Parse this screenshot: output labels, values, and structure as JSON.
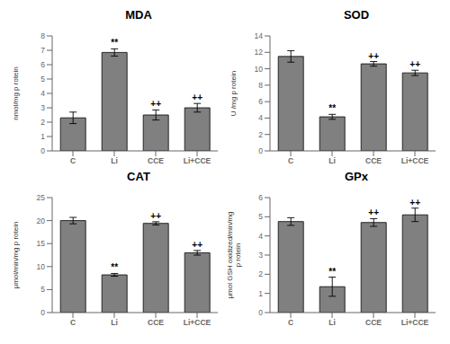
{
  "chart_data": [
    {
      "type": "bar",
      "title": "MDA",
      "ylabel": "nmol/mg p rotein",
      "categories": [
        "C",
        "Li",
        "CCE",
        "Li+CCE"
      ],
      "values": [
        2.3,
        6.85,
        2.5,
        3.0
      ],
      "errors": [
        0.4,
        0.25,
        0.35,
        0.3
      ],
      "ylim": [
        0,
        8
      ],
      "yticks": [
        0,
        1,
        2,
        3,
        4,
        5,
        6,
        7,
        8
      ],
      "annotations": [
        null,
        "**",
        "++",
        "++"
      ],
      "color": "#808080",
      "grid": false
    },
    {
      "type": "bar",
      "title": "SOD",
      "ylabel": "U /mg p rotein",
      "categories": [
        "C",
        "Li",
        "CCE",
        "Li+CCE"
      ],
      "values": [
        11.5,
        4.15,
        10.6,
        9.5
      ],
      "errors": [
        0.7,
        0.3,
        0.28,
        0.32
      ],
      "ylim": [
        0,
        14
      ],
      "yticks": [
        0,
        2,
        4,
        6,
        8,
        10,
        12,
        14
      ],
      "annotations": [
        null,
        "**",
        "++",
        "++"
      ],
      "color": "#808080",
      "grid": false
    },
    {
      "type": "bar",
      "title": "CAT",
      "ylabel": "μmol/min/mg p rotein",
      "categories": [
        "C",
        "Li",
        "CCE",
        "Li+CCE"
      ],
      "values": [
        20.0,
        8.2,
        19.4,
        13.0
      ],
      "errors": [
        0.7,
        0.3,
        0.35,
        0.5
      ],
      "ylim": [
        0,
        25
      ],
      "yticks": [
        0,
        5,
        10,
        15,
        20,
        25
      ],
      "annotations": [
        null,
        "**",
        "++",
        "++"
      ],
      "color": "#808080",
      "grid": false
    },
    {
      "type": "bar",
      "title": "GPx",
      "ylabel": "μmol GSH oxidized/min/mg\np rotein",
      "categories": [
        "C",
        "Li",
        "CCE",
        "Li+CCE"
      ],
      "values": [
        4.75,
        1.35,
        4.7,
        5.1
      ],
      "errors": [
        0.2,
        0.5,
        0.2,
        0.35
      ],
      "ylim": [
        0,
        6
      ],
      "yticks": [
        0,
        1,
        2,
        3,
        4,
        5,
        6
      ],
      "annotations": [
        null,
        "**",
        "++",
        "++"
      ],
      "color": "#808080",
      "grid": false
    }
  ]
}
